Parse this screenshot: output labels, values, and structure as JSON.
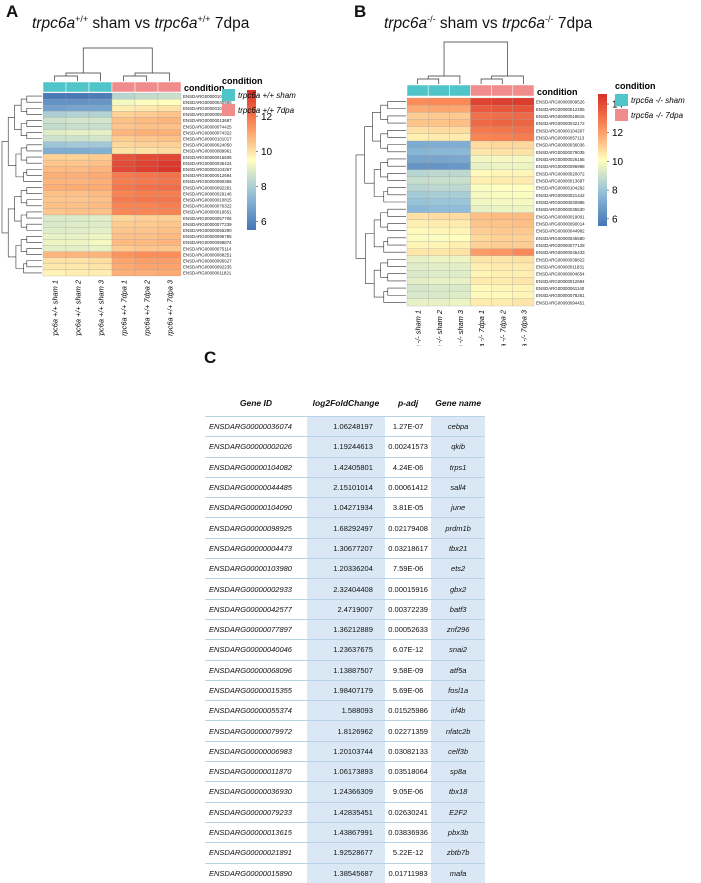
{
  "panels": [
    {
      "letter": "A",
      "title": {
        "p1": "trpc6a",
        "s1": "+/+",
        "p2": " sham vs ",
        "p3": "trpc6a",
        "s2": "+/+",
        "p4": " 7dpa"
      },
      "genes": [
        "ENSDARG00000103184",
        "ENSDARG00000040965",
        "ENSDARG00000100020",
        "ENSDARG00000099014",
        "ENSDARG00000013687",
        "ENSDARG00000074425",
        "ENSDARG00000074322",
        "ENSDARG00000101017",
        "ENSDARG00000024050",
        "ENSDARG00000089961",
        "ENSDARG00000015605",
        "ENSDARG00000036424",
        "ENSDARG00000104267",
        "ENSDARG00000012694",
        "ENSDARG00000090366",
        "ENSDARG00000092281",
        "ENSDARG00000029146",
        "ENSDARG00000010815",
        "ENSDARG00000076322",
        "ENSDARG00000019651",
        "ENSDARG00000057706",
        "ENSDARG00000077239",
        "ENSDARG00000055290",
        "ENSDARG00000096785",
        "ENSDARG00000098874",
        "ENSDARG00000075114",
        "ENSDARG00000088251",
        "ENSDARG00000095627",
        "ENSDARG00000092235",
        "ENSDARG00000011821"
      ],
      "samples": [
        "trpc6a +/+ sham 1",
        "trpc6a +/+ sham 2",
        "trpc6a +/+ sham 3",
        "trpc6a +/+ 7dpa 1",
        "trpc6a +/+ 7dpa 2",
        "trpc6a +/+ 7dpa 3"
      ],
      "values": [
        [
          5.6,
          5.6,
          5.7,
          8.2,
          8.4,
          8.5
        ],
        [
          6.3,
          6.3,
          6.4,
          9.3,
          9.4,
          9.5
        ],
        [
          6.7,
          6.8,
          6.8,
          9.8,
          9.9,
          10.0
        ],
        [
          8.0,
          8.1,
          8.1,
          10.3,
          10.4,
          10.5
        ],
        [
          8.6,
          8.7,
          8.7,
          10.6,
          10.7,
          10.8
        ],
        [
          8.4,
          8.5,
          8.5,
          10.5,
          10.6,
          10.6
        ],
        [
          8.9,
          9.0,
          9.0,
          10.8,
          10.9,
          10.9
        ],
        [
          8.6,
          8.6,
          8.7,
          10.4,
          10.5,
          10.6
        ],
        [
          7.7,
          7.8,
          7.8,
          10.2,
          10.3,
          10.3
        ],
        [
          7.0,
          7.0,
          7.1,
          10.0,
          10.0,
          10.1
        ],
        [
          10.3,
          10.3,
          10.4,
          12.7,
          12.9,
          13.0
        ],
        [
          10.5,
          10.5,
          10.6,
          12.9,
          13.1,
          13.3
        ],
        [
          10.7,
          10.7,
          10.8,
          13.0,
          13.2,
          13.4
        ],
        [
          10.9,
          10.9,
          11.0,
          11.9,
          12.0,
          12.1
        ],
        [
          10.8,
          10.8,
          10.9,
          11.8,
          11.9,
          12.0
        ],
        [
          10.9,
          11.0,
          11.0,
          12.0,
          12.1,
          12.2
        ],
        [
          10.6,
          10.6,
          10.7,
          11.7,
          11.8,
          11.8
        ],
        [
          10.5,
          10.5,
          10.6,
          11.9,
          12.0,
          12.0
        ],
        [
          10.6,
          10.6,
          10.7,
          11.7,
          11.7,
          11.8
        ],
        [
          10.5,
          10.6,
          10.6,
          11.6,
          11.6,
          11.7
        ],
        [
          8.8,
          8.8,
          8.9,
          10.2,
          10.3,
          10.3
        ],
        [
          8.8,
          8.9,
          8.9,
          10.4,
          10.4,
          10.5
        ],
        [
          8.9,
          8.9,
          9.0,
          10.5,
          10.5,
          10.6
        ],
        [
          9.1,
          9.1,
          9.2,
          10.6,
          10.6,
          10.7
        ],
        [
          9.2,
          9.2,
          9.3,
          10.7,
          10.7,
          10.8
        ],
        [
          9.0,
          9.0,
          9.1,
          10.4,
          10.5,
          10.5
        ],
        [
          10.8,
          10.8,
          10.8,
          11.4,
          11.5,
          11.5
        ],
        [
          10.0,
          10.0,
          10.1,
          11.1,
          11.2,
          11.2
        ],
        [
          9.9,
          9.9,
          10.0,
          11.0,
          11.1,
          11.1
        ],
        [
          9.7,
          9.8,
          9.8,
          10.9,
          10.9,
          11.0
        ]
      ],
      "legend": {
        "scale_title": "condition",
        "ticks": [
          6,
          8,
          10,
          12
        ],
        "range": [
          5.5,
          13.5
        ],
        "condition_title": "condition",
        "entries": [
          {
            "label": "trpc6a +/+ sham",
            "color": "#4fc4c9"
          },
          {
            "label": "trpc6a +/+ 7dpa",
            "color": "#f08c8c"
          }
        ]
      }
    },
    {
      "letter": "B",
      "title": {
        "p1": "trpc6a",
        "s1": "-/-",
        "p2": " sham vs ",
        "p3": "trpc6a",
        "s2": "-/-",
        "p4": " 7dpa"
      },
      "genes": [
        "ENSDARG00000009526",
        "ENSDARG00000012405",
        "ENSDARG00000019815",
        "ENSDARG00000042172",
        "ENSDARG00000104267",
        "ENSDARG00000057113",
        "ENSDARG00000036036",
        "ENSDARG00000079035",
        "ENSDARG00000026165",
        "ENSDARG00000096998",
        "ENSDARG00000020072",
        "ENSDARG00000013687",
        "ENSDARG00000104292",
        "ENSDARG00000021442",
        "ENSDARG00000040985",
        "ENSDARG00000035530",
        "ENSDARG00000019001",
        "ENSDARG00000090014",
        "ENSDARG00000044982",
        "ENSDARG00000045580",
        "ENSDARG00000077128",
        "ENSDARG00000045433",
        "ENSDARG00000039822",
        "ENSDARG00000011831",
        "ENSDARG00000004654",
        "ENSDARG00000012694",
        "ENSDARG00000061140",
        "ENSDARG00000078261",
        "ENSDARG00000094451"
      ],
      "samples": [
        "trpc6a -/- sham 1",
        "trpc6a -/- sham 2",
        "trpc6a -/- sham 3",
        "trpc6a -/- 7dpa 1",
        "trpc6a -/- 7dpa 2",
        "trpc6a -/- 7dpa 3"
      ],
      "values": [
        [
          12.4,
          12.5,
          12.5,
          14.2,
          14.3,
          14.4
        ],
        [
          11.8,
          11.9,
          11.9,
          13.6,
          13.7,
          13.8
        ],
        [
          11.1,
          11.2,
          11.2,
          13.1,
          13.2,
          13.3
        ],
        [
          11.3,
          11.3,
          11.4,
          13.3,
          13.4,
          13.4
        ],
        [
          10.7,
          10.8,
          10.8,
          12.9,
          13.0,
          13.1
        ],
        [
          10.4,
          10.5,
          10.5,
          12.6,
          12.7,
          12.8
        ],
        [
          7.2,
          7.3,
          7.3,
          10.8,
          10.9,
          10.9
        ],
        [
          7.5,
          7.6,
          7.6,
          10.6,
          10.7,
          10.7
        ],
        [
          7.0,
          7.0,
          7.1,
          9.8,
          9.9,
          9.9
        ],
        [
          6.5,
          6.5,
          6.6,
          9.6,
          9.7,
          9.7
        ],
        [
          8.6,
          8.7,
          8.7,
          10.2,
          10.3,
          10.3
        ],
        [
          8.9,
          9.0,
          9.0,
          10.4,
          10.5,
          10.5
        ],
        [
          8.6,
          8.7,
          8.7,
          10.0,
          10.1,
          10.1
        ],
        [
          8.2,
          8.3,
          8.3,
          9.9,
          10.0,
          10.0
        ],
        [
          7.9,
          8.0,
          8.0,
          9.8,
          9.9,
          9.9
        ],
        [
          7.6,
          7.7,
          7.7,
          9.6,
          9.7,
          9.7
        ],
        [
          10.7,
          10.8,
          10.8,
          11.4,
          11.5,
          11.5
        ],
        [
          10.4,
          10.5,
          10.5,
          11.3,
          11.3,
          11.4
        ],
        [
          10.2,
          10.3,
          10.3,
          11.1,
          11.2,
          11.2
        ],
        [
          10.0,
          10.0,
          10.1,
          10.9,
          11.0,
          11.0
        ],
        [
          10.3,
          10.3,
          10.4,
          11.0,
          11.1,
          11.1
        ],
        [
          10.6,
          10.6,
          10.7,
          12.1,
          12.2,
          12.5
        ],
        [
          9.6,
          9.7,
          9.7,
          10.6,
          10.6,
          10.7
        ],
        [
          9.4,
          9.5,
          9.5,
          10.4,
          10.5,
          10.5
        ],
        [
          9.3,
          9.4,
          9.4,
          10.3,
          10.4,
          10.4
        ],
        [
          9.5,
          9.6,
          9.6,
          10.5,
          10.5,
          10.6
        ],
        [
          9.2,
          9.3,
          9.3,
          10.2,
          10.3,
          10.3
        ],
        [
          9.3,
          9.3,
          9.4,
          10.2,
          10.2,
          10.3
        ],
        [
          9.6,
          9.6,
          9.7,
          10.5,
          10.5,
          10.6
        ]
      ],
      "legend": {
        "scale_title": "condition",
        "ticks": [
          6,
          8,
          10,
          12,
          14
        ],
        "range": [
          5.5,
          14.7
        ],
        "condition_title": "condition",
        "entries": [
          {
            "label": "trpc6a -/- sham",
            "color": "#4fc4c9"
          },
          {
            "label": "trpc6a -/- 7dpa",
            "color": "#f08c8c"
          }
        ]
      }
    }
  ],
  "table": {
    "letter": "C",
    "headers": [
      "Gene ID",
      "log2FoldChange",
      "p-adj",
      "Gene name"
    ],
    "rows": [
      [
        "ENSDARG00000036074",
        "1.06248197",
        "1.27E-07",
        "cebpa"
      ],
      [
        "ENSDARG00000002026",
        "1.19244613",
        "0.00241573",
        "qkib"
      ],
      [
        "ENSDARG00000104082",
        "1.42405801",
        "4.24E-06",
        "trps1"
      ],
      [
        "ENSDARG00000044485",
        "2.15101014",
        "0.00061412",
        "sall4"
      ],
      [
        "ENSDARG00000104090",
        "1.04271934",
        "3.81E-05",
        "june"
      ],
      [
        "ENSDARG00000098925",
        "1.68292497",
        "0.02179408",
        "prdm1b"
      ],
      [
        "ENSDARG00000004473",
        "1.30677207",
        "0.03218617",
        "tbx21"
      ],
      [
        "ENSDARG00000103980",
        "1.20336204",
        "7.59E-06",
        "ets2"
      ],
      [
        "ENSDARG00000002933",
        "2.32404408",
        "0.00015916",
        "gbx2"
      ],
      [
        "ENSDARG00000042577",
        "2.4719007",
        "0.00372239",
        "batf3"
      ],
      [
        "ENSDARG00000077897",
        "1.36212889",
        "0.00052633",
        "znf296"
      ],
      [
        "ENSDARG00000040046",
        "1.23637675",
        "6.07E-12",
        "snai2"
      ],
      [
        "ENSDARG00000068096",
        "1.13887507",
        "9.58E-09",
        "atf5a"
      ],
      [
        "ENSDARG00000015355",
        "1.98407179",
        "5.69E-06",
        "fosl1a"
      ],
      [
        "ENSDARG00000055374",
        "1.588093",
        "0.01525986",
        "irf4b"
      ],
      [
        "ENSDARG00000079972",
        "1.8126962",
        "0.02271359",
        "nfatc2b"
      ],
      [
        "ENSDARG00000006983",
        "1.20103744",
        "0.03082133",
        "celf3b"
      ],
      [
        "ENSDARG00000011870",
        "1.06173893",
        "0.03518064",
        "sp8a"
      ],
      [
        "ENSDARG00000036930",
        "1.24366309",
        "9.05E-06",
        "tbx18"
      ],
      [
        "ENSDARG00000079233",
        "1.42835451",
        "0.02630241",
        "E2F2"
      ],
      [
        "ENSDARG00000013615",
        "1.43867991",
        "0.03836936",
        "pbx3b"
      ],
      [
        "ENSDARG00000021891",
        "1.92528677",
        "5.22E-12",
        "zbtb7b"
      ],
      [
        "ENSDARG00000015890",
        "1.38545687",
        "0.01711983",
        "mafa"
      ]
    ]
  }
}
